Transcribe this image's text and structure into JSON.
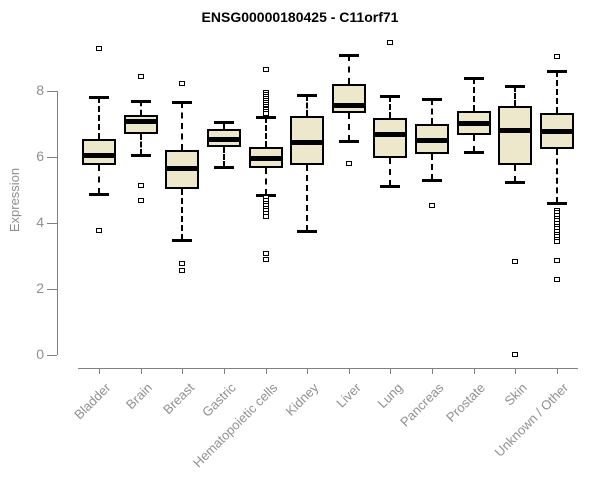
{
  "title": "ENSG00000180425 - C11orf71",
  "chart_data": {
    "type": "boxplot",
    "title": "ENSG00000180425 - C11orf71",
    "ylabel": "Expression",
    "xlabel": "",
    "ylim": [
      0,
      9.6
    ],
    "yticks": [
      0,
      2,
      4,
      6,
      8
    ],
    "grid": false,
    "legend": false,
    "categories": [
      "Bladder",
      "Brain",
      "Breast",
      "Gastric",
      "Hematopoietic cells",
      "Kidney",
      "Liver",
      "Lung",
      "Pancreas",
      "Prostate",
      "Skin",
      "Unknown / Other"
    ],
    "series": [
      {
        "category": "Bladder",
        "whisker_low": 4.88,
        "q1": 5.76,
        "median": 6.06,
        "q3": 6.55,
        "whisker_high": 7.82,
        "outliers": [
          9.3,
          3.8
        ]
      },
      {
        "category": "Brain",
        "whisker_low": 6.06,
        "q1": 6.69,
        "median": 7.1,
        "q3": 7.27,
        "whisker_high": 7.7,
        "outliers": [
          8.45,
          5.15,
          4.7
        ]
      },
      {
        "category": "Breast",
        "whisker_low": 3.48,
        "q1": 5.03,
        "median": 5.68,
        "q3": 6.21,
        "whisker_high": 7.68,
        "outliers": [
          8.25,
          2.79,
          2.58
        ]
      },
      {
        "category": "Gastric",
        "whisker_low": 5.7,
        "q1": 6.31,
        "median": 6.55,
        "q3": 6.84,
        "whisker_high": 7.05,
        "outliers": []
      },
      {
        "category": "Hematopoietic cells",
        "whisker_low": 4.85,
        "q1": 5.66,
        "median": 5.97,
        "q3": 6.3,
        "whisker_high": 7.2,
        "outliers": [
          8.68,
          7.98,
          7.92,
          7.86,
          7.8,
          7.74,
          7.68,
          7.62,
          7.56,
          7.5,
          7.44,
          7.38,
          7.32,
          4.78,
          4.7,
          4.62,
          4.54,
          4.46,
          4.38,
          4.3,
          4.22,
          3.1,
          2.92
        ]
      },
      {
        "category": "Kidney",
        "whisker_low": 3.75,
        "q1": 5.76,
        "median": 6.46,
        "q3": 7.24,
        "whisker_high": 7.88,
        "outliers": []
      },
      {
        "category": "Liver",
        "whisker_low": 6.47,
        "q1": 7.33,
        "median": 7.58,
        "q3": 8.2,
        "whisker_high": 9.1,
        "outliers": [
          5.82
        ]
      },
      {
        "category": "Lung",
        "whisker_low": 5.12,
        "q1": 5.98,
        "median": 6.7,
        "q3": 7.17,
        "whisker_high": 7.85,
        "outliers": [
          9.5
        ]
      },
      {
        "category": "Pancreas",
        "whisker_low": 5.3,
        "q1": 6.08,
        "median": 6.52,
        "q3": 6.99,
        "whisker_high": 7.75,
        "outliers": [
          4.55
        ]
      },
      {
        "category": "Prostate",
        "whisker_low": 6.16,
        "q1": 6.67,
        "median": 7.02,
        "q3": 7.39,
        "whisker_high": 8.38,
        "outliers": []
      },
      {
        "category": "Skin",
        "whisker_low": 5.25,
        "q1": 5.76,
        "median": 6.82,
        "q3": 7.56,
        "whisker_high": 8.16,
        "outliers": [
          2.86,
          0.02
        ]
      },
      {
        "category": "Unknown / Other",
        "whisker_low": 4.62,
        "q1": 6.23,
        "median": 6.8,
        "q3": 7.32,
        "whisker_high": 8.62,
        "outliers": [
          9.05,
          4.4,
          4.32,
          4.24,
          4.16,
          4.08,
          4.0,
          3.92,
          3.84,
          3.76,
          3.68,
          3.6,
          3.52,
          3.44,
          2.88,
          2.3
        ]
      }
    ],
    "colors": {
      "box_fill": "#EDE7CC",
      "box_border": "#000000",
      "median": "#000000",
      "whisker": "#000000",
      "axis": "#808080",
      "tick_label": "#909090",
      "title": "#000000",
      "background": "#FFFFFF"
    }
  }
}
